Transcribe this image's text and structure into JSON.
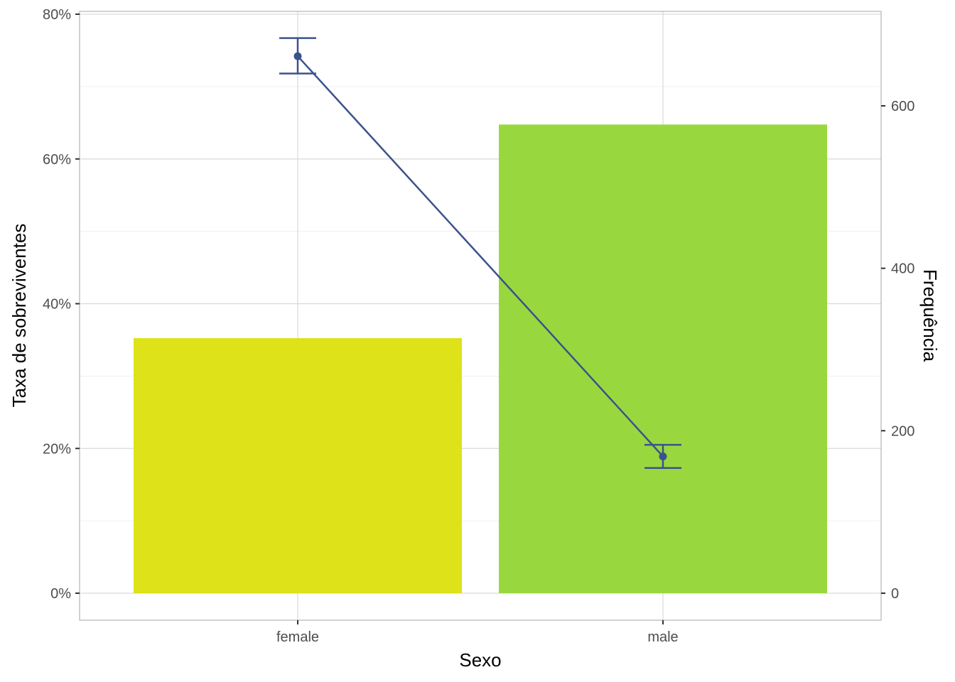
{
  "chart_data": {
    "type": "bar",
    "categories": [
      "female",
      "male"
    ],
    "xlabel": "Sexo",
    "ylabel": "Taxa de sobreviventes",
    "y2label": "Frequência",
    "ylim": [
      0,
      0.8
    ],
    "y2lim": [
      0,
      700
    ],
    "yticks": [
      {
        "value": 0,
        "label": "0%"
      },
      {
        "value": 0.2,
        "label": "20%"
      },
      {
        "value": 0.4,
        "label": "40%"
      },
      {
        "value": 0.6,
        "label": "60%"
      },
      {
        "value": 0.8,
        "label": "80%"
      }
    ],
    "y2ticks": [
      {
        "value": 0,
        "label": "0"
      },
      {
        "value": 200,
        "label": "200"
      },
      {
        "value": 400,
        "label": "400"
      },
      {
        "value": 600,
        "label": "600"
      }
    ],
    "bars": {
      "axis": "right",
      "values": [
        314,
        577
      ],
      "colors": [
        "#dde318",
        "#98d83e"
      ]
    },
    "line": {
      "axis": "left",
      "values": [
        0.742,
        0.189
      ],
      "err_low": [
        0.718,
        0.173
      ],
      "err_high": [
        0.767,
        0.205
      ],
      "color": "#3b528b"
    },
    "grid": true
  }
}
